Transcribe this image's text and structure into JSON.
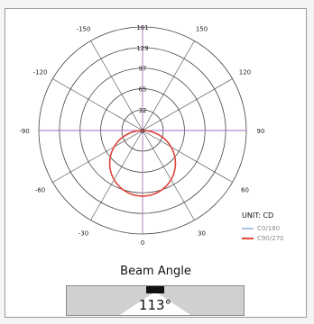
{
  "colors": {
    "c0_180": "#a9c7e6",
    "c90_270": "#e0463a",
    "grid": "#444444",
    "axis_h": "#a070c8"
  },
  "chart_data": {
    "type": "polar",
    "title": "",
    "unit_label": "UNIT: CD",
    "radial_ticks": [
      32,
      65,
      97,
      129,
      161
    ],
    "r_max": 161,
    "bottom_tick": "0",
    "angle_labels": [
      {
        "text": "-150",
        "deg": -150
      },
      {
        "text": "150",
        "deg": 150
      },
      {
        "text": "-120",
        "deg": -120
      },
      {
        "text": "120",
        "deg": 120
      },
      {
        "text": "-90",
        "deg": -90
      },
      {
        "text": "90",
        "deg": 90
      },
      {
        "text": "-60",
        "deg": -60
      },
      {
        "text": "60",
        "deg": 60
      },
      {
        "text": "-30",
        "deg": -30
      },
      {
        "text": "30",
        "deg": 30
      }
    ],
    "series": [
      {
        "name": "C0/180",
        "shape": "cosine",
        "peak": 102
      },
      {
        "name": "C90/270",
        "shape": "cosine",
        "peak": 102
      }
    ],
    "legend_position": "bottom-right"
  },
  "beam": {
    "title": "Beam Angle",
    "angle_text": "113°",
    "angle_value": 113
  }
}
